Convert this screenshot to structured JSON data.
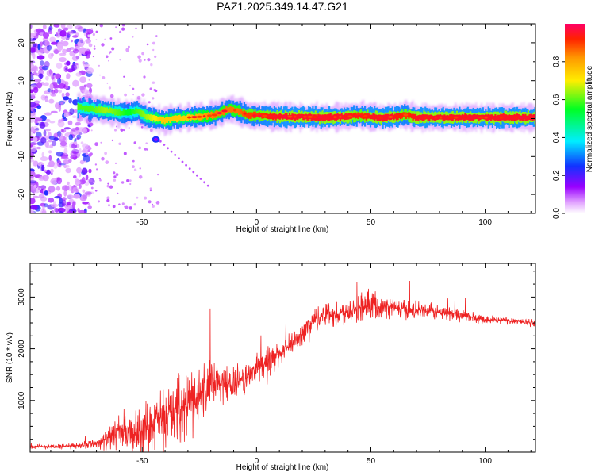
{
  "chart_data": [
    {
      "type": "heatmap",
      "title": "PAZ1.2025.349.14.47.G21",
      "xlabel": "Height of straight line (km)",
      "ylabel": "Frequency (Hz)",
      "xlim": [
        -99,
        122
      ],
      "ylim": [
        -25,
        25
      ],
      "xticks": [
        -50,
        0,
        50,
        100
      ],
      "yticks": [
        -20,
        -10,
        0,
        10,
        20
      ],
      "xtick_labels": [
        "-50",
        "0",
        "50",
        "100"
      ],
      "ytick_labels": [
        "-20",
        "-10",
        "0",
        "10",
        "20"
      ],
      "colorbar": {
        "label": "Normalized spectral amplitude",
        "ticks": [
          0.0,
          0.2,
          0.4,
          0.6,
          0.8
        ],
        "tick_labels": [
          "0.0",
          "0.2",
          "0.4",
          "0.6",
          "0.8"
        ],
        "range": [
          0,
          1
        ]
      },
      "ridge": {
        "x": [
          -78,
          -72,
          -66,
          -60,
          -56,
          -52,
          -48,
          -44,
          -40,
          -36,
          -30,
          -24,
          -18,
          -12,
          -8,
          -4,
          0,
          10,
          20,
          30,
          40,
          45,
          50,
          55,
          60,
          65,
          70,
          80,
          90,
          100,
          110,
          122
        ],
        "freq": [
          3,
          2.5,
          2.2,
          1.5,
          1.5,
          2,
          0.5,
          0,
          -0.5,
          0,
          0.3,
          0.5,
          1,
          2.5,
          2,
          1,
          0.8,
          0.5,
          0.5,
          0.3,
          0.5,
          0.8,
          0.5,
          0.2,
          0.5,
          1,
          0.3,
          0.3,
          0.3,
          0.3,
          0.3,
          0.3
        ],
        "amplitude": [
          0.45,
          0.45,
          0.5,
          0.45,
          0.4,
          0.45,
          0.5,
          0.55,
          0.65,
          0.7,
          0.75,
          0.8,
          0.85,
          0.85,
          0.85,
          0.9,
          0.9,
          0.95,
          0.95,
          0.95,
          0.95,
          0.9,
          0.95,
          0.95,
          0.95,
          0.9,
          0.95,
          0.95,
          0.95,
          0.95,
          0.95,
          0.95
        ]
      }
    },
    {
      "type": "line",
      "title": "",
      "xlabel": "Height of straight line (km)",
      "ylabel": "SNR (10 * v/v)",
      "xlim": [
        -99,
        122
      ],
      "ylim": [
        0,
        3650
      ],
      "xticks": [
        -50,
        0,
        50,
        100
      ],
      "yticks": [
        1000,
        2000,
        3000
      ],
      "xtick_labels": [
        "-50",
        "0",
        "50",
        "100"
      ],
      "ytick_labels": [
        "1000",
        "2000",
        "3000"
      ],
      "series": [
        {
          "name": "SNR",
          "color": "#ee2222",
          "x": [
            -99,
            -90,
            -80,
            -70,
            -65,
            -60,
            -55,
            -50,
            -45,
            -40,
            -35,
            -30,
            -25,
            -20,
            -15,
            -10,
            -5,
            0,
            5,
            10,
            15,
            20,
            25,
            30,
            35,
            40,
            45,
            50,
            55,
            60,
            65,
            70,
            80,
            90,
            100,
            110,
            122
          ],
          "y": [
            100,
            110,
            120,
            180,
            250,
            400,
            300,
            450,
            550,
            700,
            800,
            950,
            1100,
            1250,
            1350,
            1300,
            1400,
            1600,
            1750,
            1900,
            2050,
            2300,
            2550,
            2700,
            2650,
            2750,
            2800,
            2850,
            2800,
            2800,
            2750,
            2750,
            2700,
            2650,
            2550,
            2550,
            2500
          ],
          "noise": [
            60,
            60,
            70,
            120,
            250,
            400,
            450,
            600,
            650,
            700,
            750,
            800,
            750,
            700,
            500,
            450,
            400,
            350,
            350,
            300,
            300,
            300,
            300,
            300,
            300,
            300,
            400,
            300,
            250,
            250,
            250,
            200,
            200,
            150,
            120,
            100,
            100
          ]
        }
      ]
    }
  ]
}
